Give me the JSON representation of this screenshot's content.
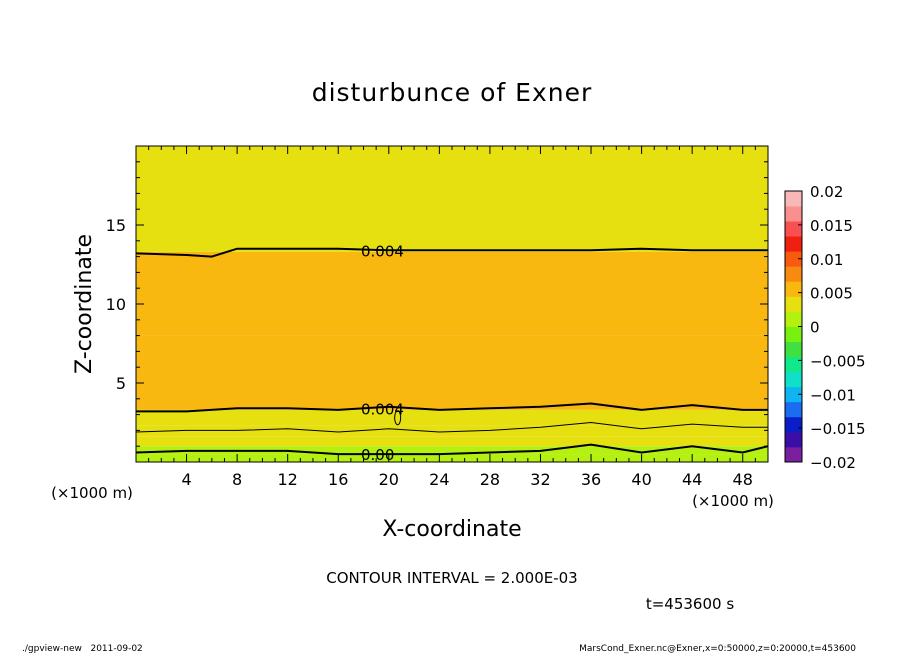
{
  "chart_data": {
    "type": "heatmap",
    "title": "disturbunce of Exner",
    "xlabel": "X-coordinate",
    "ylabel": "Z-coordinate",
    "x_unit": "(×1000 m)",
    "y_unit": "(×1000 m)",
    "xlim": [
      0,
      50
    ],
    "ylim": [
      0,
      20
    ],
    "x_ticks": [
      "4",
      "8",
      "12",
      "16",
      "20",
      "24",
      "28",
      "32",
      "36",
      "40",
      "44",
      "48"
    ],
    "y_ticks": [
      "5",
      "10",
      "15"
    ],
    "contour_interval_label": "CONTOUR INTERVAL = 2.000E-03",
    "time_label": "t=453600 s",
    "contour_labels": [
      "0.004",
      "0.004",
      "0.00"
    ],
    "colorbar": {
      "min": -0.02,
      "max": 0.02,
      "tick_labels": [
        "0.02",
        "0.015",
        "0.01",
        "0.005",
        "0",
        "−0.005",
        "−0.01",
        "−0.015",
        "−0.02"
      ],
      "colors": [
        "#7a1fa0",
        "#3a0fa8",
        "#0a1ec8",
        "#1a6cf0",
        "#10b4f0",
        "#10e0c8",
        "#10e88a",
        "#40e040",
        "#78f010",
        "#b4f010",
        "#e6e010",
        "#f8b810",
        "#f88a10",
        "#f85a10",
        "#f02010",
        "#f85050",
        "#f89090",
        "#f8b8b8"
      ]
    },
    "field_bands": [
      {
        "z_from": 0.0,
        "z_to": 0.5,
        "value": 0.0005
      },
      {
        "z_from": 0.5,
        "z_to": 1.0,
        "value": 0.0015
      },
      {
        "z_from": 1.0,
        "z_to": 1.6,
        "value": 0.0025
      },
      {
        "z_from": 1.6,
        "z_to": 2.3,
        "value": 0.0035
      },
      {
        "z_from": 2.3,
        "z_to": 3.3,
        "value": 0.0042
      },
      {
        "z_from": 3.3,
        "z_to": 5.0,
        "value": 0.0048
      },
      {
        "z_from": 5.0,
        "z_to": 8.0,
        "value": 0.0056
      },
      {
        "z_from": 8.0,
        "z_to": 13.3,
        "value": 0.0046
      },
      {
        "z_from": 13.3,
        "z_to": 20.0,
        "value": 0.0036
      }
    ],
    "contours": [
      {
        "level": 0.004,
        "z": [
          13.2,
          13.1,
          13.0,
          13.5,
          13.5,
          13.5,
          13.4,
          13.4,
          13.4,
          13.4,
          13.4,
          13.5,
          13.4,
          13.4
        ],
        "x": [
          0,
          4,
          6,
          8,
          12,
          16,
          20,
          24,
          28,
          32,
          36,
          40,
          44,
          50
        ]
      },
      {
        "level": 0.004,
        "z": [
          3.2,
          3.2,
          3.4,
          3.4,
          3.3,
          3.5,
          3.3,
          3.4,
          3.5,
          3.7,
          3.3,
          3.6,
          3.3,
          3.3
        ],
        "x": [
          0,
          4,
          8,
          12,
          16,
          20,
          24,
          28,
          32,
          36,
          40,
          44,
          48,
          50
        ]
      },
      {
        "level": 0.002,
        "z": [
          1.9,
          2.0,
          2.0,
          2.1,
          1.9,
          2.1,
          1.9,
          2.0,
          2.2,
          2.5,
          2.1,
          2.4,
          2.2,
          2.2
        ],
        "x": [
          0,
          4,
          8,
          12,
          16,
          20,
          24,
          28,
          32,
          36,
          40,
          44,
          48,
          50
        ]
      },
      {
        "level": 0.0,
        "z": [
          0.6,
          0.7,
          0.7,
          0.7,
          0.5,
          0.5,
          0.5,
          0.6,
          0.7,
          1.1,
          0.6,
          1.0,
          0.6,
          1.0
        ],
        "x": [
          0,
          4,
          8,
          12,
          16,
          20,
          24,
          28,
          32,
          36,
          40,
          44,
          48,
          50
        ]
      }
    ]
  },
  "footer": {
    "left": "./gpview-new   2011-09-02",
    "right": "MarsCond_Exner.nc@Exner,x=0:50000,z=0:20000,t=453600"
  }
}
